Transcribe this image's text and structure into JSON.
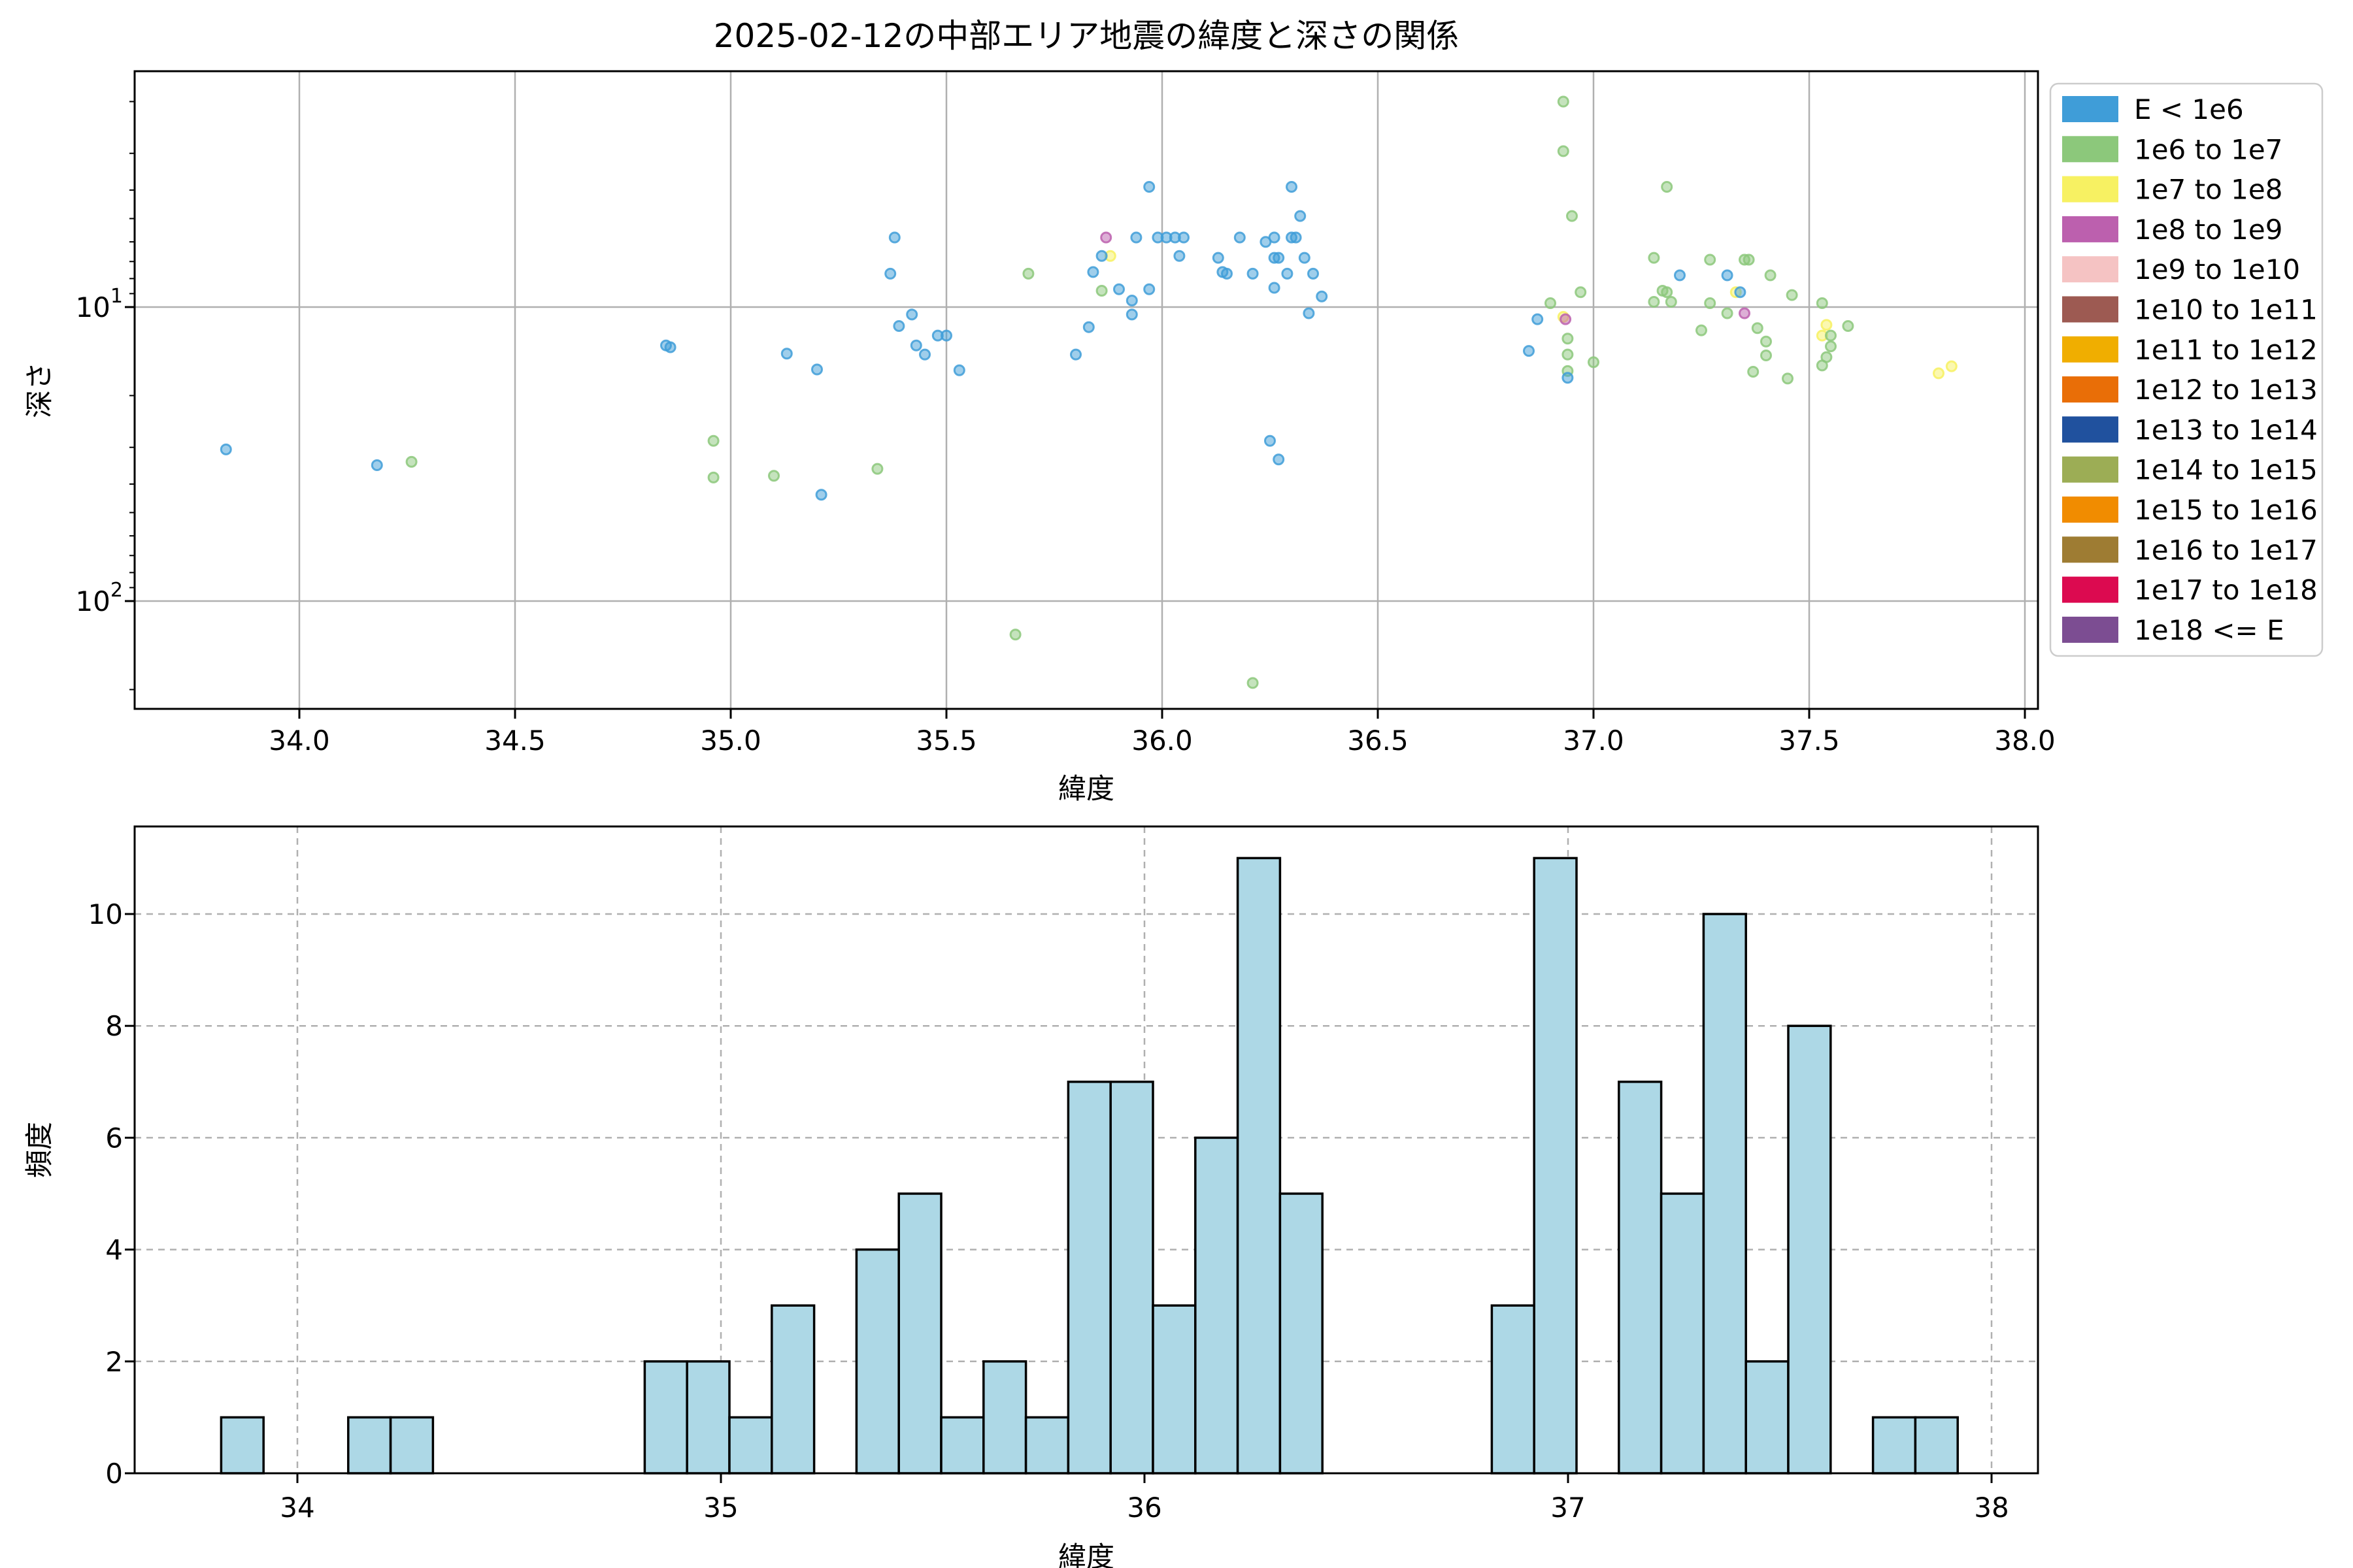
{
  "title": "2025-02-12の中部エリア地震の緯度と深さの関係",
  "chart_data": [
    {
      "type": "scatter",
      "title": "2025-02-12の中部エリア地震の緯度と深さの関係",
      "xlabel": "緯度",
      "ylabel": "深さ",
      "xlim": [
        33.618,
        38.03
      ],
      "ylim_depth_log_inverted": [
        1.58,
        233
      ],
      "grid": true,
      "xticks": [
        {
          "v": 34.0,
          "label": "34.0"
        },
        {
          "v": 34.5,
          "label": "34.5"
        },
        {
          "v": 35.0,
          "label": "35.0"
        },
        {
          "v": 35.5,
          "label": "35.5"
        },
        {
          "v": 36.0,
          "label": "36.0"
        },
        {
          "v": 36.5,
          "label": "36.5"
        },
        {
          "v": 37.0,
          "label": "37.0"
        },
        {
          "v": 37.5,
          "label": "37.5"
        },
        {
          "v": 38.0,
          "label": "38.0"
        }
      ],
      "yticks": [
        {
          "v": 10,
          "base": "10",
          "exp": "1"
        },
        {
          "v": 100,
          "base": "10",
          "exp": "2"
        }
      ],
      "yminor": [
        2,
        3,
        4,
        5,
        6,
        7,
        8,
        9,
        20,
        30,
        40,
        50,
        60,
        70,
        80,
        90,
        200
      ],
      "legend_position": "outside-right",
      "categories": [
        {
          "label": "E < 1e6",
          "color": "#3f9dd8"
        },
        {
          "label": "1e6 to 1e7",
          "color": "#8cc87b"
        },
        {
          "label": "1e7 to 1e8",
          "color": "#f7f162"
        },
        {
          "label": "1e8 to 1e9",
          "color": "#bc60ae"
        },
        {
          "label": "1e9 to 1e10",
          "color": "#f5c3c3"
        },
        {
          "label": "1e10 to 1e11",
          "color": "#9d5a52"
        },
        {
          "label": "1e11 to 1e12",
          "color": "#f0ae00"
        },
        {
          "label": "1e12 to 1e13",
          "color": "#e96e07"
        },
        {
          "label": "1e13 to 1e14",
          "color": "#20519e"
        },
        {
          "label": "1e14 to 1e15",
          "color": "#9cad55"
        },
        {
          "label": "1e15 to 1e16",
          "color": "#f18c00"
        },
        {
          "label": "1e16 to 1e17",
          "color": "#9e7c33"
        },
        {
          "label": "1e17 to 1e18",
          "color": "#dc0a50"
        },
        {
          "label": "1e18 <= E",
          "color": "#7c4d92"
        }
      ],
      "points_format": "[latitude, depth_km, category_index]",
      "points": [
        [
          33.83,
          30.5,
          0
        ],
        [
          34.18,
          34.5,
          0
        ],
        [
          34.26,
          33.6,
          1
        ],
        [
          34.85,
          13.5,
          0
        ],
        [
          34.86,
          13.7,
          0
        ],
        [
          34.96,
          28.5,
          1
        ],
        [
          34.96,
          38,
          1
        ],
        [
          35.1,
          37.5,
          1
        ],
        [
          35.13,
          14.4,
          0
        ],
        [
          35.2,
          16.3,
          0
        ],
        [
          35.21,
          43.5,
          0
        ],
        [
          35.37,
          7.7,
          0
        ],
        [
          35.38,
          5.8,
          0
        ],
        [
          35.39,
          11.6,
          0
        ],
        [
          35.34,
          35.5,
          1
        ],
        [
          35.42,
          10.6,
          0
        ],
        [
          35.43,
          13.5,
          0
        ],
        [
          35.45,
          14.5,
          0
        ],
        [
          35.48,
          12.5,
          0
        ],
        [
          35.5,
          12.5,
          0
        ],
        [
          35.53,
          16.4,
          0
        ],
        [
          35.69,
          7.7,
          1
        ],
        [
          35.66,
          130,
          1
        ],
        [
          35.8,
          14.5,
          0
        ],
        [
          35.87,
          5.8,
          3
        ],
        [
          35.88,
          6.7,
          2
        ],
        [
          35.86,
          6.7,
          0
        ],
        [
          35.84,
          7.6,
          0
        ],
        [
          35.86,
          8.8,
          1
        ],
        [
          35.9,
          8.7,
          0
        ],
        [
          35.83,
          11.7,
          0
        ],
        [
          35.97,
          3.9,
          0
        ],
        [
          35.94,
          5.8,
          0
        ],
        [
          35.99,
          5.8,
          0
        ],
        [
          36.01,
          5.8,
          0
        ],
        [
          35.97,
          8.7,
          0
        ],
        [
          35.93,
          9.5,
          0
        ],
        [
          35.93,
          10.6,
          0
        ],
        [
          36.03,
          5.8,
          0
        ],
        [
          36.05,
          5.8,
          0
        ],
        [
          36.04,
          6.7,
          0
        ],
        [
          36.18,
          5.8,
          0
        ],
        [
          36.13,
          6.8,
          0
        ],
        [
          36.14,
          7.6,
          0
        ],
        [
          36.15,
          7.7,
          0
        ],
        [
          36.21,
          7.7,
          0
        ],
        [
          36.21,
          190,
          1
        ],
        [
          36.3,
          3.9,
          0
        ],
        [
          36.26,
          5.8,
          0
        ],
        [
          36.3,
          5.8,
          0
        ],
        [
          36.31,
          5.8,
          0
        ],
        [
          36.26,
          6.8,
          0
        ],
        [
          36.27,
          6.8,
          0
        ],
        [
          36.29,
          7.7,
          0
        ],
        [
          36.26,
          8.6,
          0
        ],
        [
          36.25,
          28.5,
          0
        ],
        [
          36.27,
          33,
          0
        ],
        [
          36.24,
          6.0,
          0
        ],
        [
          36.32,
          4.9,
          0
        ],
        [
          36.33,
          6.8,
          0
        ],
        [
          36.35,
          7.7,
          0
        ],
        [
          36.34,
          10.5,
          0
        ],
        [
          36.37,
          9.2,
          0
        ],
        [
          36.85,
          14.1,
          0
        ],
        [
          36.87,
          11,
          0
        ],
        [
          36.9,
          9.7,
          1
        ],
        [
          36.93,
          2.0,
          1
        ],
        [
          36.93,
          2.95,
          1
        ],
        [
          36.95,
          4.9,
          1
        ],
        [
          36.93,
          10.8,
          2
        ],
        [
          36.935,
          11,
          3
        ],
        [
          36.94,
          12.8,
          1
        ],
        [
          36.94,
          14.5,
          1
        ],
        [
          36.94,
          16.5,
          1
        ],
        [
          36.94,
          17.4,
          0
        ],
        [
          37.0,
          15.4,
          1
        ],
        [
          36.97,
          8.9,
          1
        ],
        [
          37.17,
          3.9,
          1
        ],
        [
          37.14,
          6.8,
          1
        ],
        [
          37.2,
          7.8,
          0
        ],
        [
          37.16,
          8.8,
          1
        ],
        [
          37.17,
          8.9,
          1
        ],
        [
          37.14,
          9.6,
          1
        ],
        [
          37.18,
          9.6,
          1
        ],
        [
          37.27,
          6.9,
          1
        ],
        [
          37.27,
          9.7,
          1
        ],
        [
          37.25,
          12.0,
          1
        ],
        [
          37.31,
          10.5,
          1
        ],
        [
          37.31,
          7.8,
          0
        ],
        [
          37.35,
          6.9,
          1
        ],
        [
          37.36,
          6.9,
          1
        ],
        [
          37.33,
          8.9,
          2
        ],
        [
          37.34,
          8.9,
          0
        ],
        [
          37.35,
          10.5,
          3
        ],
        [
          37.41,
          7.8,
          1
        ],
        [
          37.38,
          11.8,
          1
        ],
        [
          37.4,
          13.1,
          1
        ],
        [
          37.4,
          14.6,
          1
        ],
        [
          37.37,
          16.6,
          1
        ],
        [
          37.46,
          9.1,
          1
        ],
        [
          37.45,
          17.5,
          1
        ],
        [
          37.54,
          11.5,
          2
        ],
        [
          37.53,
          12.5,
          2
        ],
        [
          37.55,
          12.5,
          1
        ],
        [
          37.55,
          13.6,
          1
        ],
        [
          37.54,
          14.8,
          1
        ],
        [
          37.53,
          15.8,
          1
        ],
        [
          37.59,
          11.6,
          1
        ],
        [
          37.53,
          9.7,
          1
        ],
        [
          37.8,
          16.8,
          2
        ],
        [
          37.83,
          15.9,
          2
        ]
      ]
    },
    {
      "type": "bar",
      "subtype": "histogram",
      "xlabel": "緯度",
      "ylabel": "頻度",
      "xlim": [
        33.616,
        38.167
      ],
      "ylim": [
        0,
        11.57
      ],
      "grid": "dashed",
      "bar_color": "#add8e6",
      "bar_edge_color": "#000000",
      "bin_start": 33.82,
      "bin_width": 0.1,
      "counts": [
        1,
        0,
        0,
        1,
        1,
        0,
        0,
        0,
        0,
        0,
        2,
        2,
        1,
        3,
        0,
        4,
        5,
        1,
        2,
        1,
        7,
        7,
        3,
        6,
        11,
        5,
        0,
        0,
        0,
        0,
        3,
        11,
        0,
        7,
        5,
        10,
        2,
        8,
        0,
        1,
        1
      ],
      "xticks": [
        {
          "v": 34,
          "label": "34"
        },
        {
          "v": 35,
          "label": "35"
        },
        {
          "v": 36,
          "label": "36"
        },
        {
          "v": 37,
          "label": "37"
        },
        {
          "v": 38,
          "label": "38"
        }
      ],
      "yticks": [
        {
          "v": 0,
          "label": "0"
        },
        {
          "v": 2,
          "label": "2"
        },
        {
          "v": 4,
          "label": "4"
        },
        {
          "v": 6,
          "label": "6"
        },
        {
          "v": 8,
          "label": "8"
        },
        {
          "v": 10,
          "label": "10"
        }
      ]
    }
  ],
  "scatter": {
    "xlabel": "緯度",
    "ylabel": "深さ"
  },
  "hist": {
    "xlabel": "緯度",
    "ylabel": "頻度"
  },
  "style": {
    "grid_color": "#b0b0b0",
    "spine_color": "#000000",
    "legend_border_color": "#cccccc",
    "background": "#ffffff",
    "marker_fill_opacity": 0.5,
    "marker_stroke_opacity": 0.85
  }
}
